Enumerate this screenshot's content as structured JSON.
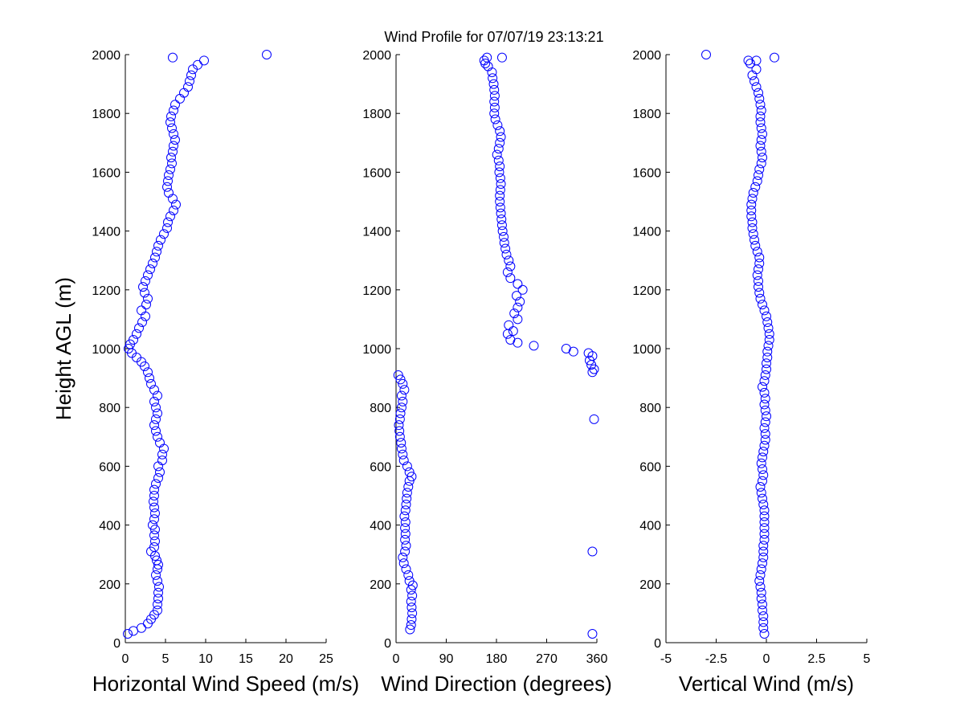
{
  "figure": {
    "title": "Wind Profile for  07/07/19 23:13:21",
    "marker_color": "#0000ff",
    "axis_color": "#000000",
    "background": "#ffffff"
  },
  "chart_data": [
    {
      "type": "scatter",
      "xlabel": "Horizontal Wind Speed (m/s)",
      "ylabel": "Height AGL (m)",
      "xlim": [
        0,
        25
      ],
      "ylim": [
        0,
        2000
      ],
      "xticks": [
        "0",
        "5",
        "10",
        "15",
        "20",
        "25"
      ],
      "xtick_values": [
        0,
        5,
        10,
        15,
        20,
        25
      ],
      "yticks": [
        "0",
        "200",
        "400",
        "600",
        "800",
        "1000",
        "1200",
        "1400",
        "1600",
        "1800",
        "2000"
      ],
      "ytick_values": [
        0,
        200,
        400,
        600,
        800,
        1000,
        1200,
        1400,
        1600,
        1800,
        2000
      ],
      "points": [
        [
          0.3,
          30
        ],
        [
          1.0,
          40
        ],
        [
          2.0,
          50
        ],
        [
          2.8,
          65
        ],
        [
          3.2,
          80
        ],
        [
          3.6,
          95
        ],
        [
          4.0,
          110
        ],
        [
          4.0,
          130
        ],
        [
          4.1,
          150
        ],
        [
          4.1,
          170
        ],
        [
          4.2,
          190
        ],
        [
          4.0,
          210
        ],
        [
          3.8,
          230
        ],
        [
          4.0,
          250
        ],
        [
          4.1,
          265
        ],
        [
          3.9,
          280
        ],
        [
          3.7,
          295
        ],
        [
          3.2,
          310
        ],
        [
          3.6,
          325
        ],
        [
          3.7,
          345
        ],
        [
          3.6,
          365
        ],
        [
          3.7,
          385
        ],
        [
          3.4,
          400
        ],
        [
          3.6,
          420
        ],
        [
          3.7,
          440
        ],
        [
          3.6,
          460
        ],
        [
          3.5,
          480
        ],
        [
          3.6,
          500
        ],
        [
          3.6,
          520
        ],
        [
          3.8,
          540
        ],
        [
          4.1,
          560
        ],
        [
          4.3,
          580
        ],
        [
          4.1,
          600
        ],
        [
          4.6,
          620
        ],
        [
          4.6,
          640
        ],
        [
          4.8,
          660
        ],
        [
          4.3,
          680
        ],
        [
          4.0,
          700
        ],
        [
          3.8,
          720
        ],
        [
          3.6,
          740
        ],
        [
          3.8,
          760
        ],
        [
          4.0,
          780
        ],
        [
          3.8,
          800
        ],
        [
          3.6,
          820
        ],
        [
          4.0,
          840
        ],
        [
          3.6,
          860
        ],
        [
          3.2,
          880
        ],
        [
          3.0,
          900
        ],
        [
          2.8,
          920
        ],
        [
          2.4,
          940
        ],
        [
          2.0,
          955
        ],
        [
          1.4,
          970
        ],
        [
          0.8,
          985
        ],
        [
          0.4,
          1000
        ],
        [
          0.6,
          1015
        ],
        [
          1.0,
          1030
        ],
        [
          1.4,
          1050
        ],
        [
          1.7,
          1070
        ],
        [
          2.1,
          1090
        ],
        [
          2.5,
          1110
        ],
        [
          2.0,
          1130
        ],
        [
          2.6,
          1150
        ],
        [
          2.8,
          1170
        ],
        [
          2.4,
          1190
        ],
        [
          2.2,
          1210
        ],
        [
          2.5,
          1230
        ],
        [
          2.8,
          1250
        ],
        [
          3.1,
          1270
        ],
        [
          3.4,
          1290
        ],
        [
          3.7,
          1310
        ],
        [
          3.9,
          1330
        ],
        [
          4.1,
          1350
        ],
        [
          4.4,
          1370
        ],
        [
          4.8,
          1390
        ],
        [
          5.2,
          1410
        ],
        [
          5.3,
          1430
        ],
        [
          5.6,
          1450
        ],
        [
          6.0,
          1470
        ],
        [
          6.3,
          1490
        ],
        [
          5.9,
          1510
        ],
        [
          5.4,
          1530
        ],
        [
          5.2,
          1550
        ],
        [
          5.3,
          1570
        ],
        [
          5.4,
          1590
        ],
        [
          5.6,
          1610
        ],
        [
          5.8,
          1630
        ],
        [
          5.7,
          1650
        ],
        [
          5.9,
          1670
        ],
        [
          6.0,
          1690
        ],
        [
          6.2,
          1710
        ],
        [
          6.0,
          1730
        ],
        [
          5.8,
          1750
        ],
        [
          5.6,
          1770
        ],
        [
          5.7,
          1790
        ],
        [
          6.0,
          1810
        ],
        [
          6.2,
          1830
        ],
        [
          6.8,
          1850
        ],
        [
          7.3,
          1870
        ],
        [
          7.8,
          1890
        ],
        [
          8.0,
          1910
        ],
        [
          8.2,
          1930
        ],
        [
          8.4,
          1950
        ],
        [
          9.0,
          1965
        ],
        [
          9.8,
          1980
        ],
        [
          5.9,
          1990
        ],
        [
          17.6,
          2000
        ]
      ]
    },
    {
      "type": "scatter",
      "xlabel": "Wind Direction (degrees)",
      "ylabel": "",
      "xlim": [
        0,
        360
      ],
      "ylim": [
        0,
        2000
      ],
      "xticks": [
        "0",
        "90",
        "180",
        "270",
        "360"
      ],
      "xtick_values": [
        0,
        90,
        180,
        270,
        360
      ],
      "yticks": [
        "0",
        "200",
        "400",
        "600",
        "800",
        "1000",
        "1200",
        "1400",
        "1600",
        "1800",
        "2000"
      ],
      "ytick_values": [
        0,
        200,
        400,
        600,
        800,
        1000,
        1200,
        1400,
        1600,
        1800,
        2000
      ],
      "points": [
        [
          352,
          30
        ],
        [
          25,
          45
        ],
        [
          27,
          60
        ],
        [
          28,
          80
        ],
        [
          29,
          100
        ],
        [
          28,
          120
        ],
        [
          27,
          140
        ],
        [
          29,
          160
        ],
        [
          27,
          180
        ],
        [
          30,
          195
        ],
        [
          24,
          210
        ],
        [
          22,
          230
        ],
        [
          18,
          250
        ],
        [
          14,
          270
        ],
        [
          12,
          290
        ],
        [
          16,
          310
        ],
        [
          18,
          330
        ],
        [
          16,
          350
        ],
        [
          17,
          370
        ],
        [
          16,
          390
        ],
        [
          17,
          410
        ],
        [
          15,
          430
        ],
        [
          17,
          450
        ],
        [
          18,
          470
        ],
        [
          19,
          490
        ],
        [
          20,
          510
        ],
        [
          22,
          530
        ],
        [
          24,
          550
        ],
        [
          28,
          565
        ],
        [
          24,
          580
        ],
        [
          20,
          600
        ],
        [
          14,
          620
        ],
        [
          12,
          640
        ],
        [
          10,
          660
        ],
        [
          9,
          680
        ],
        [
          7,
          700
        ],
        [
          6,
          720
        ],
        [
          5,
          740
        ],
        [
          7,
          760
        ],
        [
          8,
          780
        ],
        [
          10,
          800
        ],
        [
          12,
          820
        ],
        [
          10,
          840
        ],
        [
          15,
          860
        ],
        [
          12,
          880
        ],
        [
          8,
          895
        ],
        [
          4,
          910
        ],
        [
          355,
          760
        ],
        [
          352,
          310
        ],
        [
          352,
          920
        ],
        [
          355,
          930
        ],
        [
          350,
          945
        ],
        [
          347,
          960
        ],
        [
          352,
          975
        ],
        [
          345,
          985
        ],
        [
          318,
          990
        ],
        [
          305,
          1000
        ],
        [
          247,
          1010
        ],
        [
          218,
          1020
        ],
        [
          205,
          1030
        ],
        [
          200,
          1050
        ],
        [
          210,
          1060
        ],
        [
          202,
          1080
        ],
        [
          218,
          1100
        ],
        [
          212,
          1120
        ],
        [
          218,
          1140
        ],
        [
          222,
          1160
        ],
        [
          216,
          1180
        ],
        [
          227,
          1200
        ],
        [
          218,
          1220
        ],
        [
          205,
          1240
        ],
        [
          200,
          1260
        ],
        [
          205,
          1280
        ],
        [
          202,
          1300
        ],
        [
          198,
          1320
        ],
        [
          196,
          1340
        ],
        [
          194,
          1360
        ],
        [
          193,
          1380
        ],
        [
          191,
          1400
        ],
        [
          190,
          1420
        ],
        [
          189,
          1440
        ],
        [
          188,
          1460
        ],
        [
          187,
          1480
        ],
        [
          186,
          1500
        ],
        [
          186,
          1520
        ],
        [
          187,
          1540
        ],
        [
          188,
          1560
        ],
        [
          187,
          1580
        ],
        [
          185,
          1600
        ],
        [
          186,
          1620
        ],
        [
          184,
          1640
        ],
        [
          181,
          1660
        ],
        [
          184,
          1680
        ],
        [
          186,
          1700
        ],
        [
          188,
          1720
        ],
        [
          186,
          1740
        ],
        [
          182,
          1760
        ],
        [
          178,
          1780
        ],
        [
          176,
          1800
        ],
        [
          177,
          1820
        ],
        [
          176,
          1840
        ],
        [
          177,
          1860
        ],
        [
          176,
          1880
        ],
        [
          175,
          1900
        ],
        [
          173,
          1920
        ],
        [
          172,
          1940
        ],
        [
          165,
          1960
        ],
        [
          160,
          1970
        ],
        [
          158,
          1980
        ],
        [
          163,
          1990
        ],
        [
          190,
          1990
        ]
      ]
    },
    {
      "type": "scatter",
      "xlabel": "Vertical Wind (m/s)",
      "ylabel": "",
      "xlim": [
        -5,
        5
      ],
      "ylim": [
        0,
        2000
      ],
      "xticks": [
        "-5",
        "-2.5",
        "0",
        "2.5",
        "5"
      ],
      "xtick_values": [
        -5,
        -2.5,
        0,
        2.5,
        5
      ],
      "yticks": [
        "0",
        "200",
        "400",
        "600",
        "800",
        "1000",
        "1200",
        "1400",
        "1600",
        "1800",
        "2000"
      ],
      "ytick_values": [
        0,
        200,
        400,
        600,
        800,
        1000,
        1200,
        1400,
        1600,
        1800,
        2000
      ],
      "points": [
        [
          -0.1,
          30
        ],
        [
          -0.15,
          50
        ],
        [
          -0.15,
          70
        ],
        [
          -0.15,
          90
        ],
        [
          -0.2,
          110
        ],
        [
          -0.2,
          130
        ],
        [
          -0.25,
          150
        ],
        [
          -0.25,
          170
        ],
        [
          -0.3,
          190
        ],
        [
          -0.35,
          210
        ],
        [
          -0.3,
          230
        ],
        [
          -0.25,
          250
        ],
        [
          -0.2,
          270
        ],
        [
          -0.15,
          290
        ],
        [
          -0.15,
          310
        ],
        [
          -0.15,
          330
        ],
        [
          -0.1,
          350
        ],
        [
          -0.1,
          370
        ],
        [
          -0.1,
          390
        ],
        [
          -0.1,
          410
        ],
        [
          -0.1,
          430
        ],
        [
          -0.1,
          450
        ],
        [
          -0.15,
          470
        ],
        [
          -0.2,
          490
        ],
        [
          -0.25,
          510
        ],
        [
          -0.3,
          530
        ],
        [
          -0.2,
          550
        ],
        [
          -0.15,
          570
        ],
        [
          -0.2,
          590
        ],
        [
          -0.25,
          610
        ],
        [
          -0.2,
          630
        ],
        [
          -0.15,
          650
        ],
        [
          -0.1,
          670
        ],
        [
          -0.05,
          690
        ],
        [
          -0.05,
          710
        ],
        [
          -0.1,
          730
        ],
        [
          -0.05,
          750
        ],
        [
          0,
          770
        ],
        [
          -0.05,
          790
        ],
        [
          -0.1,
          810
        ],
        [
          -0.05,
          830
        ],
        [
          -0.1,
          850
        ],
        [
          -0.2,
          870
        ],
        [
          -0.1,
          890
        ],
        [
          -0.05,
          910
        ],
        [
          0,
          930
        ],
        [
          0,
          950
        ],
        [
          0.05,
          970
        ],
        [
          0.05,
          990
        ],
        [
          0.1,
          1010
        ],
        [
          0.15,
          1030
        ],
        [
          0.15,
          1050
        ],
        [
          0.1,
          1070
        ],
        [
          0.05,
          1090
        ],
        [
          0,
          1110
        ],
        [
          -0.1,
          1130
        ],
        [
          -0.2,
          1150
        ],
        [
          -0.3,
          1170
        ],
        [
          -0.35,
          1190
        ],
        [
          -0.4,
          1210
        ],
        [
          -0.4,
          1230
        ],
        [
          -0.45,
          1250
        ],
        [
          -0.4,
          1270
        ],
        [
          -0.35,
          1290
        ],
        [
          -0.35,
          1310
        ],
        [
          -0.45,
          1330
        ],
        [
          -0.55,
          1350
        ],
        [
          -0.6,
          1370
        ],
        [
          -0.65,
          1390
        ],
        [
          -0.7,
          1410
        ],
        [
          -0.7,
          1430
        ],
        [
          -0.75,
          1450
        ],
        [
          -0.75,
          1470
        ],
        [
          -0.75,
          1490
        ],
        [
          -0.7,
          1510
        ],
        [
          -0.65,
          1530
        ],
        [
          -0.55,
          1550
        ],
        [
          -0.45,
          1570
        ],
        [
          -0.4,
          1590
        ],
        [
          -0.35,
          1610
        ],
        [
          -0.25,
          1630
        ],
        [
          -0.2,
          1650
        ],
        [
          -0.25,
          1670
        ],
        [
          -0.3,
          1690
        ],
        [
          -0.25,
          1710
        ],
        [
          -0.2,
          1730
        ],
        [
          -0.25,
          1750
        ],
        [
          -0.3,
          1770
        ],
        [
          -0.3,
          1790
        ],
        [
          -0.25,
          1810
        ],
        [
          -0.3,
          1830
        ],
        [
          -0.35,
          1850
        ],
        [
          -0.4,
          1870
        ],
        [
          -0.5,
          1890
        ],
        [
          -0.6,
          1910
        ],
        [
          -0.7,
          1930
        ],
        [
          -0.5,
          1950
        ],
        [
          -0.8,
          1970
        ],
        [
          -0.5,
          1980
        ],
        [
          -0.9,
          1980
        ],
        [
          -3.0,
          2000
        ],
        [
          0.4,
          1990
        ]
      ]
    }
  ]
}
